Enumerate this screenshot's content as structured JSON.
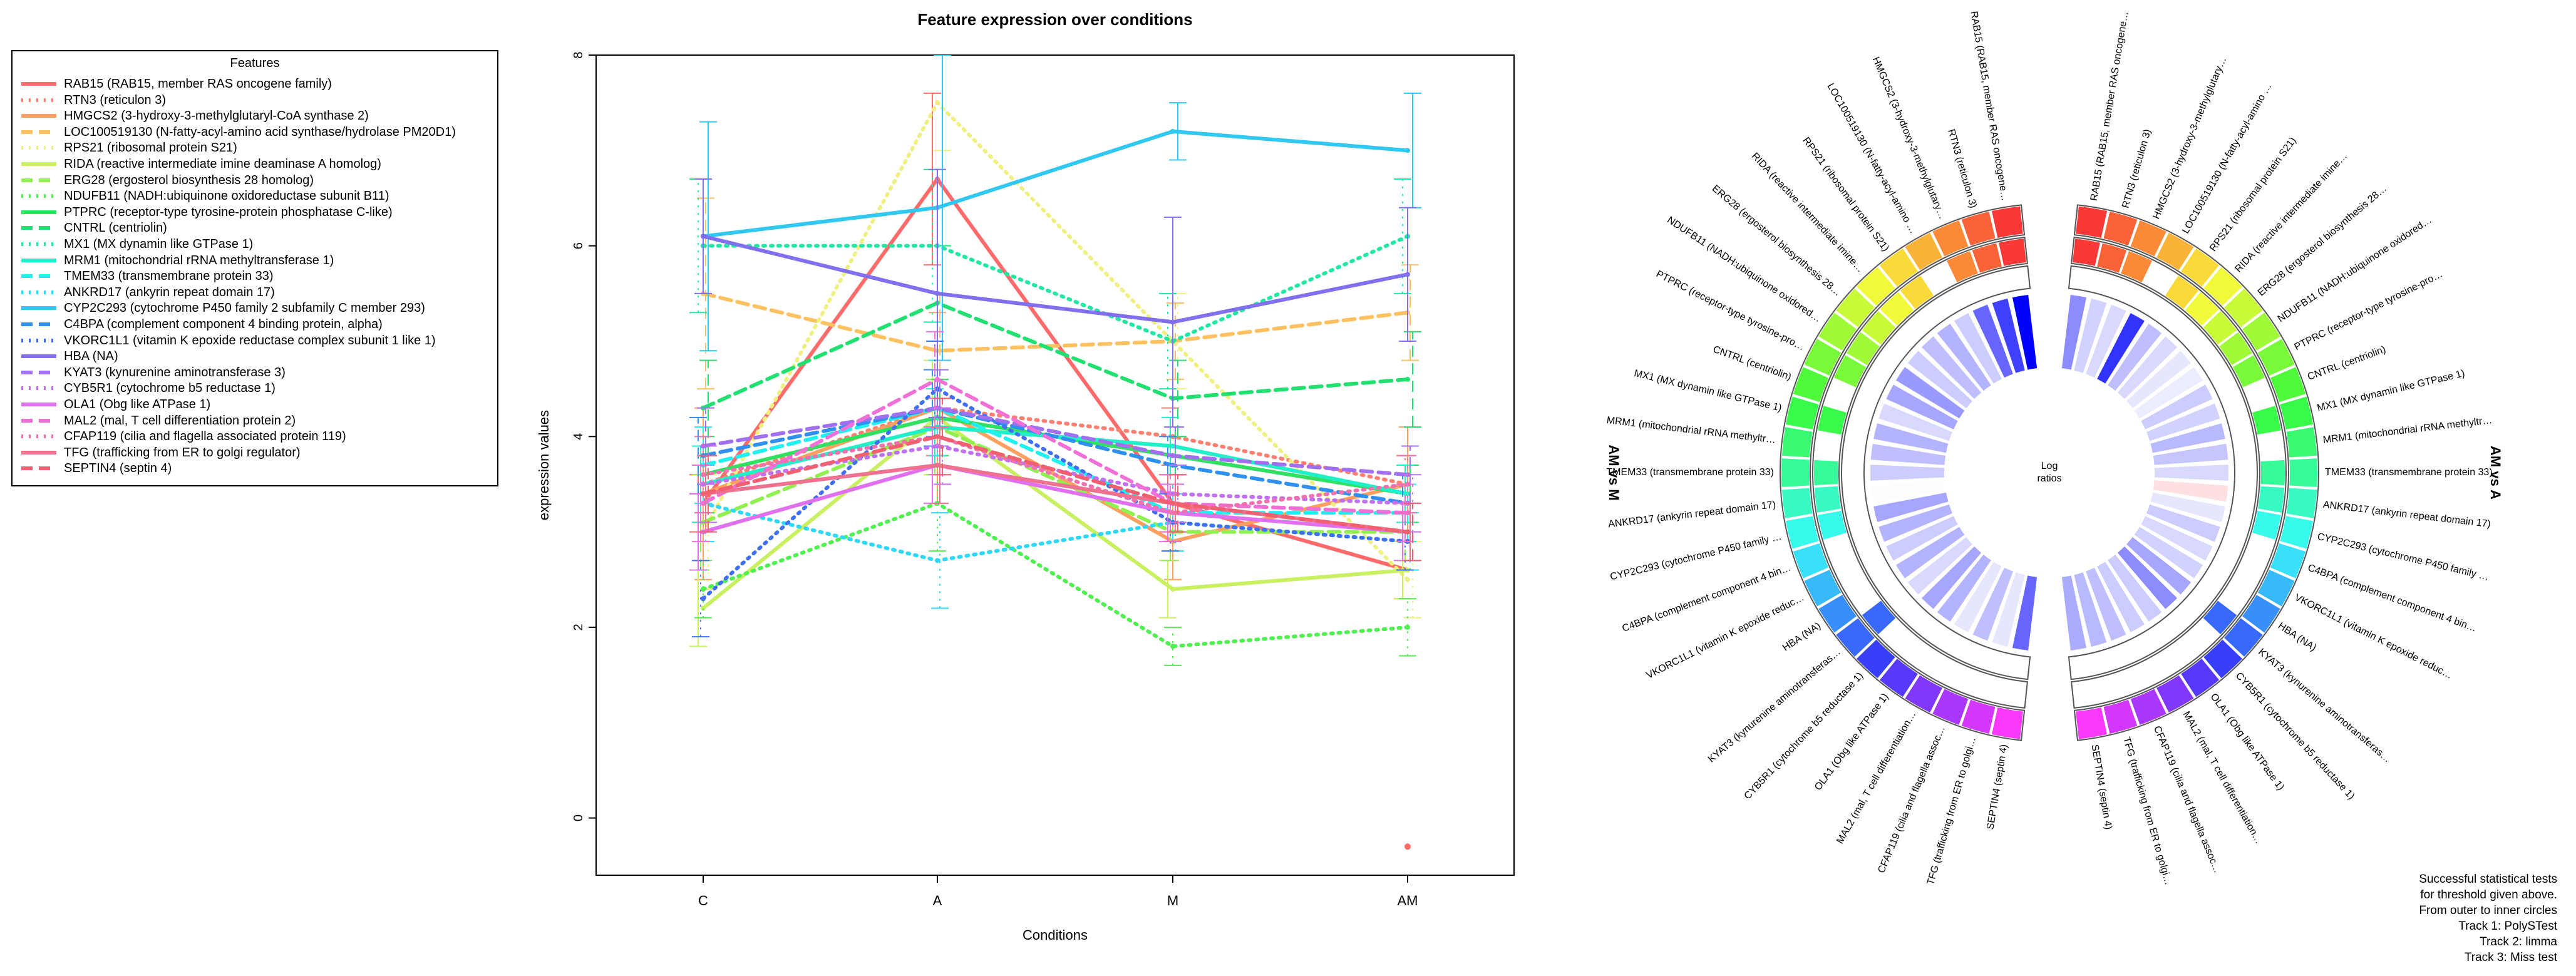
{
  "chart_data": [
    {
      "type": "line",
      "title": "Feature expression over conditions",
      "xlabel": "Conditions",
      "ylabel": "expression values",
      "categories": [
        "C",
        "A",
        "M",
        "AM"
      ],
      "ylim": [
        -0.6,
        8.0
      ],
      "yticks": [
        0,
        2,
        4,
        6,
        8
      ],
      "legend_title": "Features",
      "legend_position": "left",
      "series": [
        {
          "name": "RAB15 (RAB15, member RAS oncogene family)",
          "color": "#FF6B6B",
          "dash": "solid",
          "values": [
            3.3,
            6.7,
            3.3,
            2.6
          ],
          "err": [
            0.3,
            0.9,
            0.3,
            0.3
          ]
        },
        {
          "name": "RTN3 (reticulon 3)",
          "color": "#FF7F70",
          "dash": "dotted",
          "values": [
            3.5,
            4.3,
            4.0,
            3.5
          ],
          "err": [
            0.4,
            0.5,
            0.3,
            0.3
          ]
        },
        {
          "name": "HMGCS2 (3-hydroxy-3-methylglutaryl-CoA synthase 2)",
          "color": "#FFA060",
          "dash": "solid",
          "values": [
            3.4,
            4.3,
            2.9,
            3.5
          ],
          "err": [
            0.9,
            1.0,
            0.4,
            0.6
          ]
        },
        {
          "name": "LOC100519130 (N-fatty-acyl-amino acid synthase/hydrolase PM20D1)",
          "color": "#FFC060",
          "dash": "dashed",
          "values": [
            5.5,
            4.9,
            5.0,
            5.3
          ],
          "err": [
            1.0,
            0.6,
            0.4,
            0.5
          ]
        },
        {
          "name": "RPS21 (ribosomal protein S21)",
          "color": "#F0F080",
          "dash": "dotted",
          "values": [
            3.0,
            7.5,
            5.0,
            2.5
          ],
          "err": [
            0.6,
            0.5,
            0.5,
            0.4
          ]
        },
        {
          "name": "RIDA (reactive intermediate imine deaminase A homolog)",
          "color": "#C8F060",
          "dash": "solid",
          "values": [
            2.2,
            4.2,
            2.4,
            2.6
          ],
          "err": [
            0.4,
            0.6,
            0.3,
            0.3
          ]
        },
        {
          "name": "ERG28 (ergosterol biosynthesis 28 homolog)",
          "color": "#90F050",
          "dash": "dashed",
          "values": [
            3.1,
            4.1,
            3.0,
            3.0
          ],
          "err": [
            0.5,
            0.5,
            0.3,
            0.3
          ]
        },
        {
          "name": "NDUFB11 (NADH:ubiquinone oxidoreductase subunit B11)",
          "color": "#50F050",
          "dash": "dotted",
          "values": [
            2.4,
            3.3,
            1.8,
            2.0
          ],
          "err": [
            0.3,
            0.5,
            0.2,
            0.3
          ]
        },
        {
          "name": "PTPRC (receptor-type tyrosine-protein phosphatase C-like)",
          "color": "#30E060",
          "dash": "solid",
          "values": [
            3.6,
            4.2,
            3.8,
            3.4
          ],
          "err": [
            0.4,
            0.4,
            0.3,
            0.3
          ]
        },
        {
          "name": "CNTRL (centriolin)",
          "color": "#20E070",
          "dash": "dashed",
          "values": [
            4.3,
            5.4,
            4.4,
            4.6
          ],
          "err": [
            0.5,
            0.6,
            0.4,
            0.5
          ]
        },
        {
          "name": "MX1 (MX dynamin like GTPase 1)",
          "color": "#20E8A0",
          "dash": "dotted",
          "values": [
            6.0,
            6.0,
            5.0,
            6.1
          ],
          "err": [
            0.7,
            0.8,
            0.5,
            0.6
          ]
        },
        {
          "name": "MRM1 (mitochondrial rRNA methyltransferase 1)",
          "color": "#20F0C8",
          "dash": "solid",
          "values": [
            3.5,
            4.1,
            3.9,
            3.4
          ],
          "err": [
            0.4,
            0.4,
            0.3,
            0.3
          ]
        },
        {
          "name": "TMEM33 (transmembrane protein 33)",
          "color": "#20F0F0",
          "dash": "dashed",
          "values": [
            3.7,
            4.3,
            3.2,
            3.2
          ],
          "err": [
            0.4,
            0.5,
            0.3,
            0.3
          ]
        },
        {
          "name": "ANKRD17 (ankyrin repeat domain 17)",
          "color": "#30D8F8",
          "dash": "dotted",
          "values": [
            3.3,
            2.7,
            3.1,
            2.9
          ],
          "err": [
            0.4,
            0.5,
            0.3,
            0.3
          ]
        },
        {
          "name": "CYP2C293 (cytochrome P450 family 2 subfamily C member 293)",
          "color": "#30C8F0",
          "dash": "solid",
          "values": [
            6.1,
            6.4,
            7.2,
            7.0
          ],
          "err": [
            1.2,
            1.6,
            0.3,
            0.6
          ]
        },
        {
          "name": "C4BPA (complement component 4 binding protein, alpha)",
          "color": "#3090F0",
          "dash": "dashed",
          "values": [
            3.8,
            4.3,
            3.7,
            3.3
          ],
          "err": [
            0.4,
            0.4,
            0.3,
            0.3
          ]
        },
        {
          "name": "VKORC1L1 (vitamin K epoxide reductase complex subunit 1 like 1)",
          "color": "#4070F0",
          "dash": "dotted",
          "values": [
            2.3,
            4.5,
            3.1,
            2.9
          ],
          "err": [
            0.4,
            0.5,
            0.3,
            0.3
          ]
        },
        {
          "name": "HBA (NA)",
          "color": "#8070F0",
          "dash": "solid",
          "values": [
            6.1,
            5.5,
            5.2,
            5.7
          ],
          "err": [
            0.6,
            1.3,
            1.1,
            0.7
          ]
        },
        {
          "name": "KYAT3 (kynurenine aminotransferase 3)",
          "color": "#A070F0",
          "dash": "dashed",
          "values": [
            3.9,
            4.3,
            3.8,
            3.6
          ],
          "err": [
            0.4,
            0.4,
            0.3,
            0.3
          ]
        },
        {
          "name": "CYB5R1 (cytochrome b5 reductase 1)",
          "color": "#C070F0",
          "dash": "dotted",
          "values": [
            3.5,
            3.9,
            3.4,
            3.3
          ],
          "err": [
            0.4,
            0.4,
            0.3,
            0.3
          ]
        },
        {
          "name": "OLA1 (Obg like ATPase 1)",
          "color": "#E070F0",
          "dash": "solid",
          "values": [
            3.0,
            3.7,
            3.2,
            3.0
          ],
          "err": [
            0.4,
            0.4,
            0.3,
            0.3
          ]
        },
        {
          "name": "MAL2 (mal, T cell differentiation protein 2)",
          "color": "#F070D8",
          "dash": "dashed",
          "values": [
            3.3,
            4.6,
            3.3,
            3.2
          ],
          "err": [
            0.4,
            0.5,
            0.3,
            0.3
          ]
        },
        {
          "name": "CFAP119 (cilia and flagella associated protein 119)",
          "color": "#F070B0",
          "dash": "dotted",
          "values": [
            3.6,
            4.0,
            3.2,
            3.5
          ],
          "err": [
            0.4,
            0.4,
            0.3,
            0.3
          ]
        },
        {
          "name": "TFG (trafficking from ER to golgi regulator)",
          "color": "#F07090",
          "dash": "solid",
          "values": [
            3.4,
            3.7,
            3.3,
            3.0
          ],
          "err": [
            0.4,
            0.4,
            0.3,
            0.3
          ]
        },
        {
          "name": "SEPTIN4 (septin 4)",
          "color": "#F06070",
          "dash": "dashed",
          "values": [
            3.4,
            4.0,
            3.3,
            3.0
          ],
          "err": [
            0.4,
            0.4,
            0.3,
            0.3
          ]
        }
      ],
      "outlier_point": {
        "category": "AM",
        "value": -0.3
      }
    },
    {
      "type": "circos",
      "center_label_line1": "Log",
      "center_label_line2": "ratios",
      "left_side_label": "AM vs M",
      "right_side_label": "AM vs A",
      "features": [
        "RAB15 (RAB15, member RAS oncogene family)",
        "RTN3 (reticulon 3)",
        "HMGCS2 (3-hydroxy-3-methylglutaryl-CoA synthase 2)",
        "LOC100519130 (N-fatty-acyl-amino acid synthase/hydrolase PM20D1)",
        "RPS21 (ribosomal protein S21)",
        "RIDA (reactive intermediate imine deaminase A homolog)",
        "ERG28 (ergosterol biosynthesis 28 homolog)",
        "NDUFB11 (NADH:ubiquinone oxidoreductase subunit B11)",
        "PTPRC (receptor-type tyrosine-protein phosphatase C-like)",
        "CNTRL (centriolin)",
        "MX1 (MX dynamin like GTPase 1)",
        "MRM1 (mitochondrial rRNA methyltransferase 1)",
        "TMEM33 (transmembrane protein 33)",
        "ANKRD17 (ankyrin repeat domain 17)",
        "CYP2C293 (cytochrome P450 family 2 subfamily C member 293)",
        "C4BPA (complement component 4 binding protein, alpha)",
        "VKORC1L1 (vitamin K epoxide reductase complex subunit 1 like 1)",
        "HBA (NA)",
        "KYAT3 (kynurenine aminotransferase 3)",
        "CYB5R1 (cytochrome b5 reductase 1)",
        "OLA1 (Obg like ATPase 1)",
        "MAL2 (mal, T cell differentiation protein 2)",
        "CFAP119 (cilia and flagella associated protein 119)",
        "TFG (trafficking from ER to golgi regulator)",
        "SEPTIN4 (septin 4)"
      ],
      "right_log_ratios": [
        -0.9,
        -0.35,
        -0.3,
        -1.6,
        -0.5,
        -0.3,
        -0.2,
        -0.15,
        -0.4,
        -0.35,
        -0.55,
        -0.45,
        -0.3,
        0.45,
        -0.2,
        -0.4,
        -0.3,
        -0.35,
        -0.7,
        -0.9,
        -0.4,
        -0.4,
        -0.5,
        -0.55,
        -0.65
      ],
      "left_log_ratios": [
        -2.0,
        -1.5,
        -1.2,
        -0.4,
        -0.6,
        -0.5,
        -0.4,
        -0.8,
        -0.7,
        -0.3,
        -0.6,
        -0.5,
        -0.4,
        0.05,
        -0.7,
        -0.6,
        -0.4,
        -0.6,
        -0.3,
        -0.7,
        -0.6,
        -0.2,
        -0.5,
        -0.2,
        -1.2
      ],
      "track1_significant": [
        true,
        true,
        true,
        true,
        true,
        true,
        true,
        true,
        true,
        true,
        true,
        true,
        true,
        true,
        true,
        true,
        true,
        true,
        true,
        true,
        true,
        true,
        true,
        true,
        true
      ],
      "track2_significant": [
        true,
        true,
        true,
        false,
        true,
        true,
        true,
        true,
        true,
        false,
        true,
        false,
        true,
        true,
        true,
        false,
        false,
        false,
        true,
        false,
        false,
        false,
        false,
        false,
        false
      ],
      "track3_significant": [
        false,
        false,
        false,
        false,
        false,
        false,
        false,
        false,
        false,
        false,
        false,
        false,
        false,
        false,
        false,
        false,
        false,
        false,
        false,
        false,
        false,
        false,
        false,
        false,
        false
      ]
    }
  ],
  "stats_note": {
    "line1": "Successful statistical tests",
    "line2": "for threshold given above.",
    "line3": "From outer to inner circles",
    "line4": "Track 1: PolySTest",
    "line5": "Track 2: limma",
    "line6": "Track 3: Miss test"
  }
}
